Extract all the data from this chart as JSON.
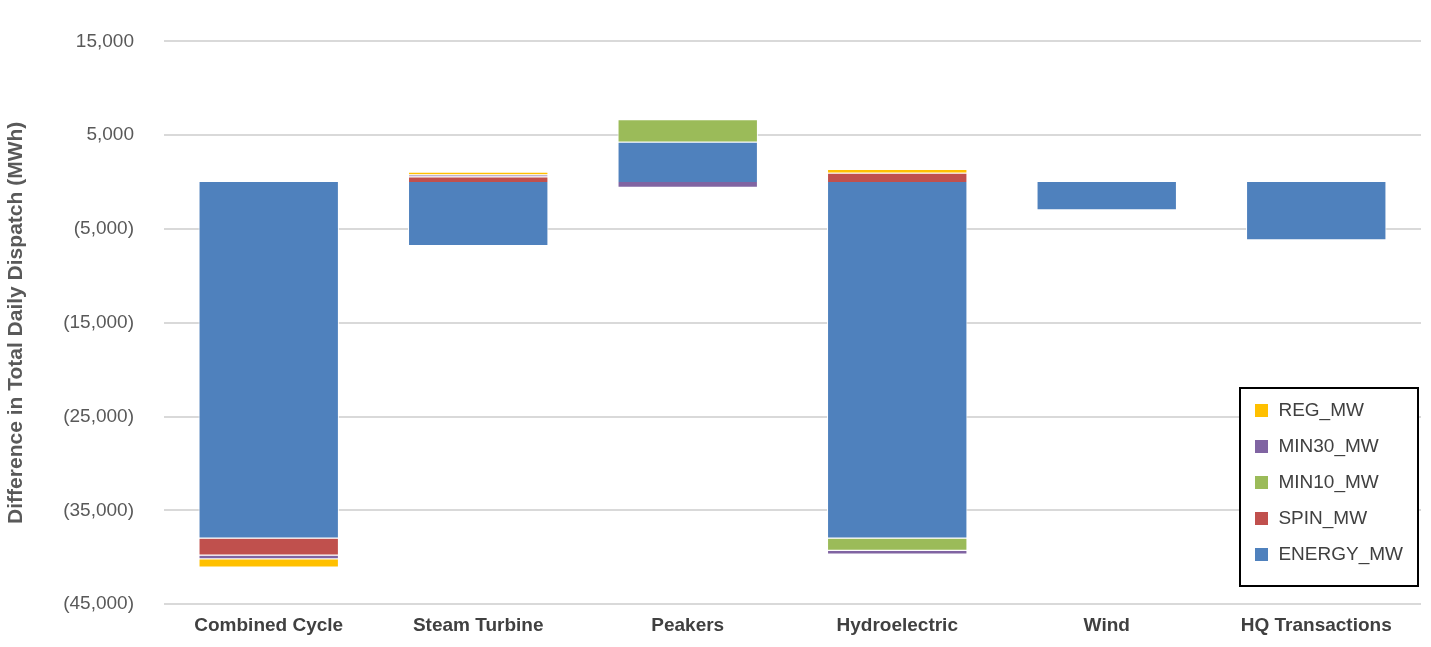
{
  "chart_data": {
    "type": "bar",
    "stacked": true,
    "ylabel": "Difference in Total Daily Dispatch (MWh)",
    "categories": [
      "Combined Cycle",
      "Steam Turbine",
      "Peakers",
      "Hydroelectric",
      "Wind",
      "HQ Transactions"
    ],
    "series": [
      {
        "name": "ENERGY_MW",
        "color": "#4f81bd",
        "values": [
          -38000,
          -6800,
          4300,
          -38000,
          -3000,
          -6200
        ]
      },
      {
        "name": "SPIN_MW",
        "color": "#c0504d",
        "values": [
          -1800,
          600,
          0,
          1000,
          0,
          0
        ]
      },
      {
        "name": "MIN10_MW",
        "color": "#9bbb59",
        "values": [
          0,
          0,
          2400,
          -1300,
          0,
          0
        ]
      },
      {
        "name": "MIN30_MW",
        "color": "#8064a2",
        "values": [
          -400,
          200,
          -600,
          -400,
          0,
          0
        ]
      },
      {
        "name": "REG_MW",
        "color": "#ffc000",
        "values": [
          -900,
          300,
          0,
          400,
          0,
          0
        ]
      }
    ],
    "ylim": [
      -45000,
      15000
    ],
    "yticks": [
      {
        "value": 15000,
        "label": "15,000"
      },
      {
        "value": 5000,
        "label": "5,000"
      },
      {
        "value": -5000,
        "label": "(5,000)"
      },
      {
        "value": -15000,
        "label": "(15,000)"
      },
      {
        "value": -25000,
        "label": "(25,000)"
      },
      {
        "value": -35000,
        "label": "(35,000)"
      },
      {
        "value": -45000,
        "label": "(45,000)"
      }
    ],
    "grid": "y",
    "legend": "bottom right"
  }
}
